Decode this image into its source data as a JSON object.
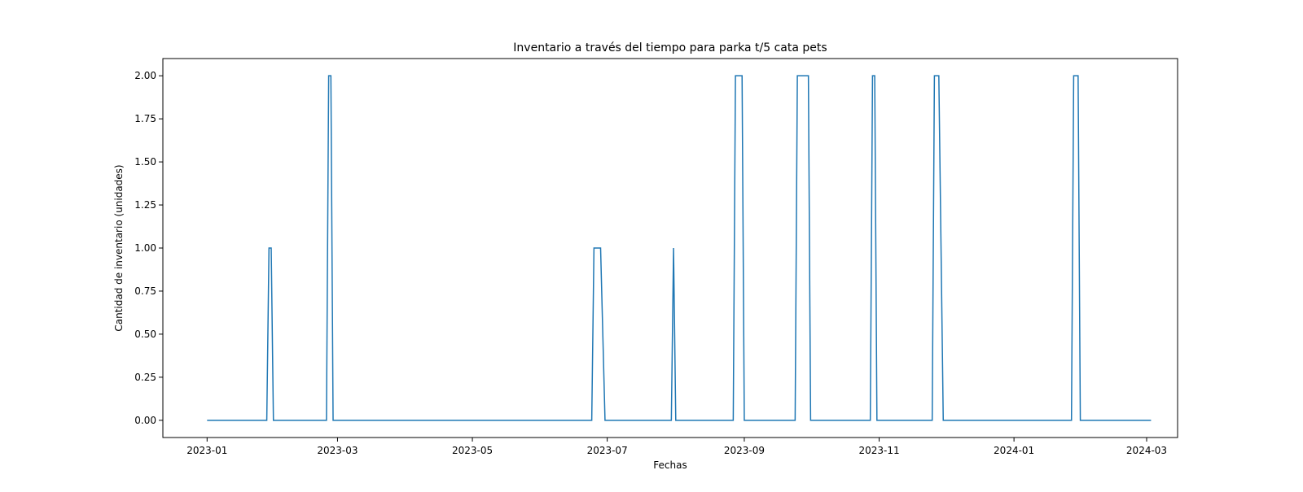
{
  "chart_data": {
    "type": "line",
    "title": "Inventario a través del tiempo para parka t/5 cata pets",
    "xlabel": "Fechas",
    "ylabel": "Cantidad de inventario (unidades)",
    "xlim": [
      "2022-12-12",
      "2024-03-15"
    ],
    "ylim": [
      -0.1,
      2.1
    ],
    "x_ticks": [
      "2023-01",
      "2023-03",
      "2023-05",
      "2023-07",
      "2023-09",
      "2023-11",
      "2024-01",
      "2024-03"
    ],
    "y_ticks": [
      0.0,
      0.25,
      0.5,
      0.75,
      1.0,
      1.25,
      1.5,
      1.75,
      2.0
    ],
    "y_tick_labels": [
      "0.00",
      "0.25",
      "0.50",
      "0.75",
      "1.00",
      "1.25",
      "1.50",
      "1.75",
      "2.00"
    ],
    "grid": false,
    "line_color": "#1f77b4",
    "series": [
      {
        "points": [
          [
            "2023-01-01",
            0
          ],
          [
            "2023-01-28",
            0
          ],
          [
            "2023-01-29",
            1
          ],
          [
            "2023-01-30",
            1
          ],
          [
            "2023-01-31",
            0
          ],
          [
            "2023-02-24",
            0
          ],
          [
            "2023-02-25",
            2
          ],
          [
            "2023-02-26",
            2
          ],
          [
            "2023-02-27",
            0
          ],
          [
            "2023-06-24",
            0
          ],
          [
            "2023-06-25",
            1
          ],
          [
            "2023-06-28",
            1
          ],
          [
            "2023-06-30",
            0
          ],
          [
            "2023-07-30",
            0
          ],
          [
            "2023-07-31",
            1
          ],
          [
            "2023-08-01",
            0
          ],
          [
            "2023-08-27",
            0
          ],
          [
            "2023-08-28",
            2
          ],
          [
            "2023-08-31",
            2
          ],
          [
            "2023-09-01",
            0
          ],
          [
            "2023-09-24",
            0
          ],
          [
            "2023-09-25",
            2
          ],
          [
            "2023-09-30",
            2
          ],
          [
            "2023-10-01",
            0
          ],
          [
            "2023-10-28",
            0
          ],
          [
            "2023-10-29",
            2
          ],
          [
            "2023-10-30",
            2
          ],
          [
            "2023-10-31",
            0
          ],
          [
            "2023-11-25",
            0
          ],
          [
            "2023-11-26",
            2
          ],
          [
            "2023-11-28",
            2
          ],
          [
            "2023-11-30",
            0
          ],
          [
            "2024-01-27",
            0
          ],
          [
            "2024-01-28",
            2
          ],
          [
            "2024-01-30",
            2
          ],
          [
            "2024-01-31",
            0
          ],
          [
            "2024-03-03",
            0
          ]
        ]
      }
    ]
  }
}
